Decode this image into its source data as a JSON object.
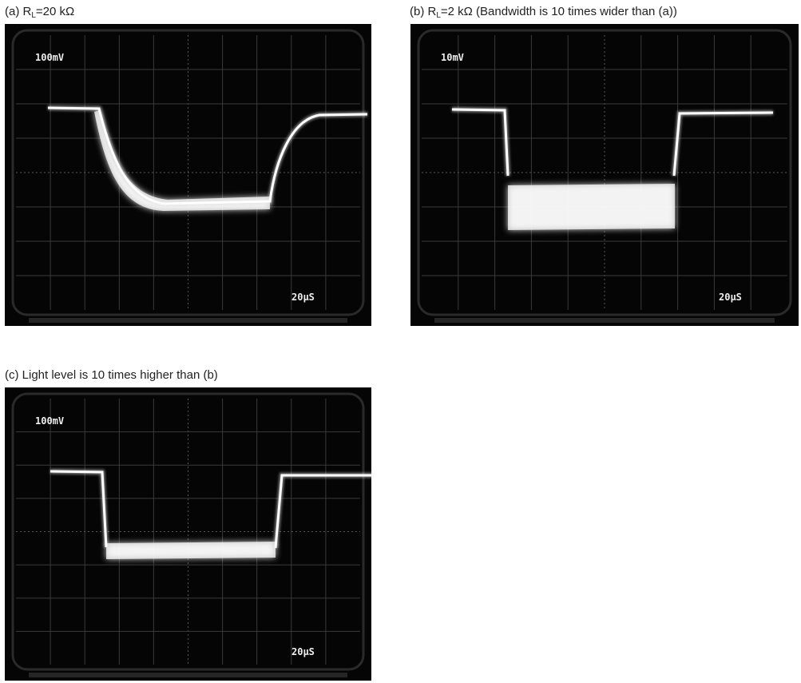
{
  "panels": [
    {
      "caption": {
        "lead": "(a) R",
        "subscript": "L",
        "rest": "=20 kΩ"
      },
      "voltage_scale": "100mV",
      "time_scale": "20µS"
    },
    {
      "caption": {
        "lead": "(b) R",
        "subscript": "L",
        "rest": "=2 kΩ (Bandwidth is 10 times wider than (a))"
      },
      "voltage_scale": "10mV",
      "time_scale": "20µS"
    },
    {
      "caption": {
        "lead": "(c) Light level is 10 times higher than (b)",
        "subscript": "",
        "rest": ""
      },
      "voltage_scale": "100mV",
      "time_scale": "20µS"
    }
  ]
}
